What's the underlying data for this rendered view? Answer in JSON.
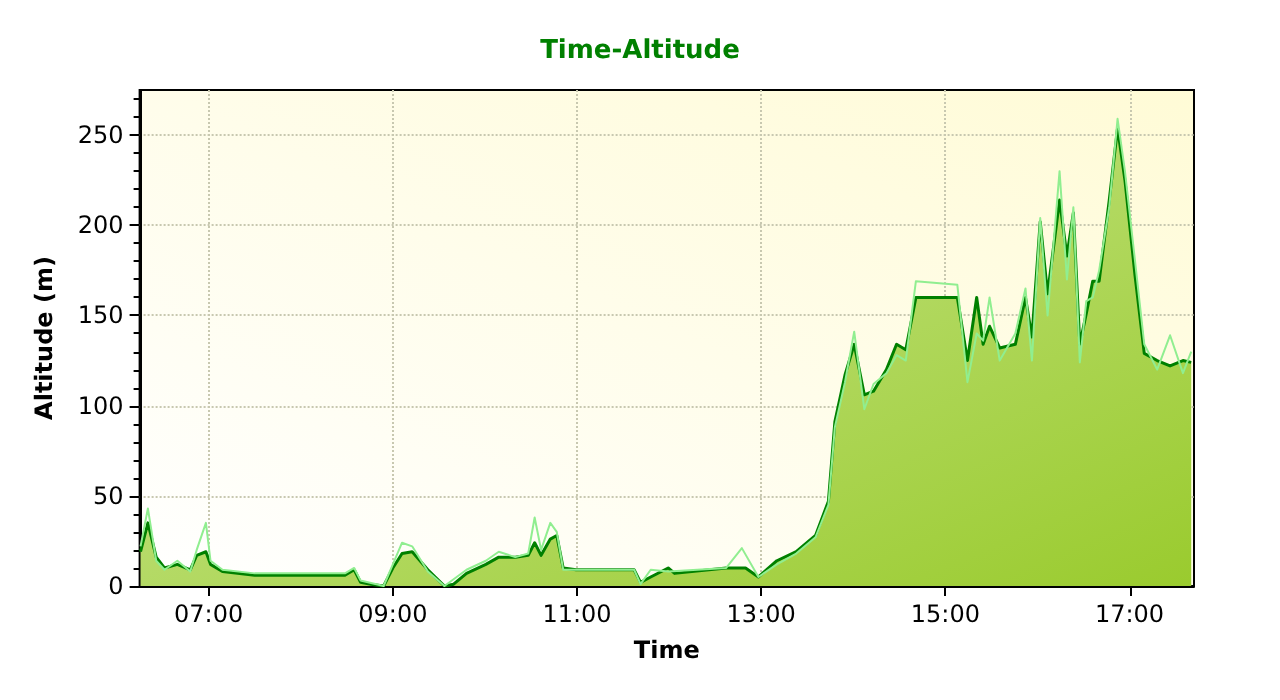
{
  "chart_data": {
    "type": "area",
    "title": "Time-Altitude",
    "xlabel": "Time",
    "ylabel": "Altitude (m)",
    "xlim": [
      6.25,
      17.7
    ],
    "xticks": [
      {
        "value": 7,
        "label": "07:00"
      },
      {
        "value": 9,
        "label": "09:00"
      },
      {
        "value": 11,
        "label": "11:00"
      },
      {
        "value": 13,
        "label": "13:00"
      },
      {
        "value": 15,
        "label": "15:00"
      },
      {
        "value": 17,
        "label": "17:00"
      }
    ],
    "ylim": [
      0,
      275
    ],
    "yticks": [
      0,
      50,
      100,
      150,
      200,
      250
    ],
    "grid": true,
    "marker": "none",
    "line_style": "solid",
    "series": [
      {
        "type": "area",
        "color": "#008000",
        "x": [
          6.26,
          6.34,
          6.43,
          6.52,
          6.66,
          6.8,
          6.87,
          6.97,
          7.02,
          7.15,
          7.5,
          8.48,
          8.58,
          8.65,
          8.76,
          8.9,
          9.0,
          9.1,
          9.21,
          9.38,
          9.56,
          9.66,
          9.8,
          10.01,
          10.15,
          10.33,
          10.47,
          10.54,
          10.61,
          10.71,
          10.78,
          10.85,
          10.99,
          11.62,
          11.69,
          11.8,
          11.99,
          12.06,
          12.62,
          12.83,
          12.97,
          13.17,
          13.38,
          13.59,
          13.73,
          13.8,
          13.91,
          14.01,
          14.12,
          14.22,
          14.36,
          14.47,
          14.57,
          14.68,
          15.13,
          15.24,
          15.34,
          15.41,
          15.48,
          15.59,
          15.76,
          15.87,
          15.94,
          16.03,
          16.11,
          16.24,
          16.32,
          16.39,
          16.46,
          16.53,
          16.6,
          16.67,
          16.78,
          16.87,
          16.95,
          17.06,
          17.16,
          17.3,
          17.44,
          17.58,
          17.67
        ],
        "values": [
          19,
          35,
          16,
          10,
          12,
          9,
          17,
          19,
          12,
          8,
          6,
          6,
          9,
          2,
          1,
          0,
          10,
          18,
          19,
          9,
          0,
          1,
          7,
          12,
          16,
          16,
          17,
          24,
          17,
          26,
          28,
          10,
          9,
          9,
          2,
          5,
          10,
          7,
          10,
          10,
          5,
          14,
          19,
          28,
          47,
          91,
          117,
          134,
          106,
          108,
          120,
          134,
          131,
          160,
          160,
          125,
          160,
          134,
          144,
          132,
          134,
          160,
          138,
          202,
          162,
          214,
          183,
          207,
          134,
          151,
          169,
          169,
          214,
          254,
          225,
          172,
          129,
          125,
          122,
          125,
          124
        ]
      },
      {
        "type": "line",
        "color": "#90ee90",
        "x": [
          6.26,
          6.34,
          6.43,
          6.52,
          6.66,
          6.8,
          6.87,
          6.97,
          7.02,
          7.15,
          7.5,
          8.48,
          8.58,
          8.65,
          8.9,
          9.0,
          9.1,
          9.21,
          9.38,
          9.56,
          9.8,
          10.01,
          10.15,
          10.33,
          10.47,
          10.54,
          10.61,
          10.71,
          10.78,
          10.85,
          10.99,
          11.62,
          11.69,
          11.8,
          11.99,
          12.62,
          12.79,
          12.97,
          13.17,
          13.38,
          13.59,
          13.73,
          13.8,
          13.91,
          14.01,
          14.12,
          14.22,
          14.36,
          14.47,
          14.57,
          14.68,
          15.13,
          15.24,
          15.34,
          15.41,
          15.48,
          15.59,
          15.76,
          15.87,
          15.94,
          16.03,
          16.11,
          16.24,
          16.32,
          16.39,
          16.46,
          16.53,
          16.6,
          16.67,
          16.78,
          16.87,
          16.95,
          17.06,
          17.16,
          17.3,
          17.44,
          17.58,
          17.67
        ],
        "values": [
          22,
          43,
          14,
          9,
          14,
          8,
          20,
          35,
          14,
          9,
          7,
          7,
          10,
          3,
          0,
          12,
          24,
          22,
          8,
          0,
          9,
          14,
          19,
          16,
          18,
          38,
          20,
          35,
          30,
          9,
          9,
          9,
          1,
          9,
          8,
          10,
          21,
          5,
          12,
          18,
          27,
          45,
          88,
          113,
          141,
          98,
          112,
          118,
          128,
          125,
          169,
          167,
          113,
          140,
          136,
          160,
          125,
          140,
          165,
          125,
          204,
          150,
          230,
          170,
          210,
          124,
          158,
          160,
          175,
          210,
          259,
          230,
          180,
          134,
          120,
          139,
          118,
          130
        ]
      }
    ]
  }
}
